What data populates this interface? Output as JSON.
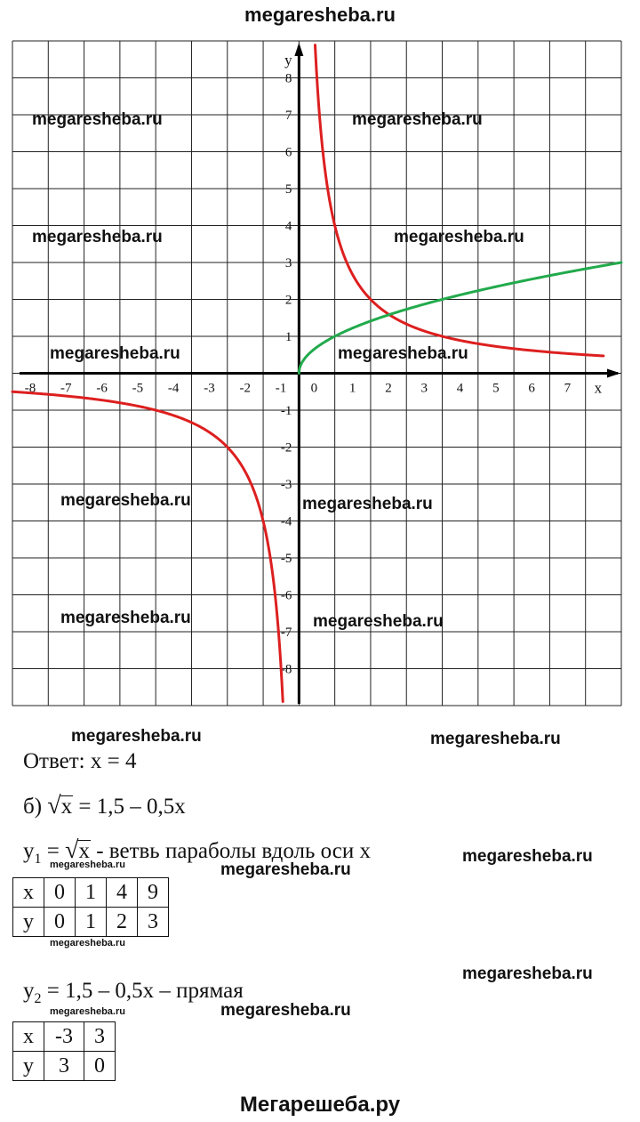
{
  "header": "megaresheba.ru",
  "footer": "Мегарешеба.ру",
  "watermark": "megaresheba.ru",
  "graph": {
    "x_axis_label": "x",
    "y_axis_label": "y",
    "x_ticks": [
      "-8",
      "-7",
      "-6",
      "-5",
      "-4",
      "-3",
      "-2",
      "-1",
      "0",
      "1",
      "2",
      "3",
      "4",
      "5",
      "6",
      "7"
    ],
    "y_ticks": [
      "8",
      "7",
      "6",
      "5",
      "4",
      "3",
      "2",
      "1",
      "-1",
      "-2",
      "-3",
      "-4",
      "-5",
      "-6",
      "-7",
      "-8"
    ]
  },
  "chart_data": {
    "type": "line",
    "title": "",
    "xlabel": "x",
    "ylabel": "y",
    "xlim": [
      -8,
      9
    ],
    "ylim": [
      -9,
      9
    ],
    "grid": true,
    "series": [
      {
        "color": "#dd1f1f",
        "formula": "y = 4/x",
        "x": [
          0.45,
          0.5,
          1,
          2,
          4,
          8.5
        ],
        "y": [
          8.9,
          8,
          4,
          2,
          1,
          0.47
        ]
      },
      {
        "color": "#dd1f1f",
        "formula": "y = 4/x",
        "x": [
          -8,
          -4,
          -2,
          -1,
          -0.5,
          -0.45
        ],
        "y": [
          -0.5,
          -1,
          -2,
          -4,
          -8,
          -8.9
        ]
      },
      {
        "color": "#22aa4c",
        "formula": "y = sqrt(x)",
        "x": [
          0,
          1,
          4,
          9
        ],
        "y": [
          0,
          1,
          2,
          3
        ]
      }
    ]
  },
  "answer": "Ответ: x = 4",
  "part_b": {
    "label": "б) ",
    "sqrt_arg": "x",
    "rhs": " = 1,5 – 0,5x"
  },
  "y1_line": {
    "var": "y",
    "sub": "1",
    "eq": " = ",
    "sqrt_arg": "x",
    "desc": " - ветвь параболы вдоль оси x"
  },
  "table1": {
    "x_header": "x",
    "x_values": [
      "0",
      "1",
      "4",
      "9"
    ],
    "y_header": "y",
    "y_values": [
      "0",
      "1",
      "2",
      "3"
    ]
  },
  "y2_line": {
    "var": "y",
    "sub": "2",
    "rest": " = 1,5 – 0,5x – прямая"
  },
  "table2": {
    "x_header": "x",
    "x_values": [
      "-3",
      "3"
    ],
    "y_header": "y",
    "y_values": [
      "3",
      "0"
    ]
  }
}
